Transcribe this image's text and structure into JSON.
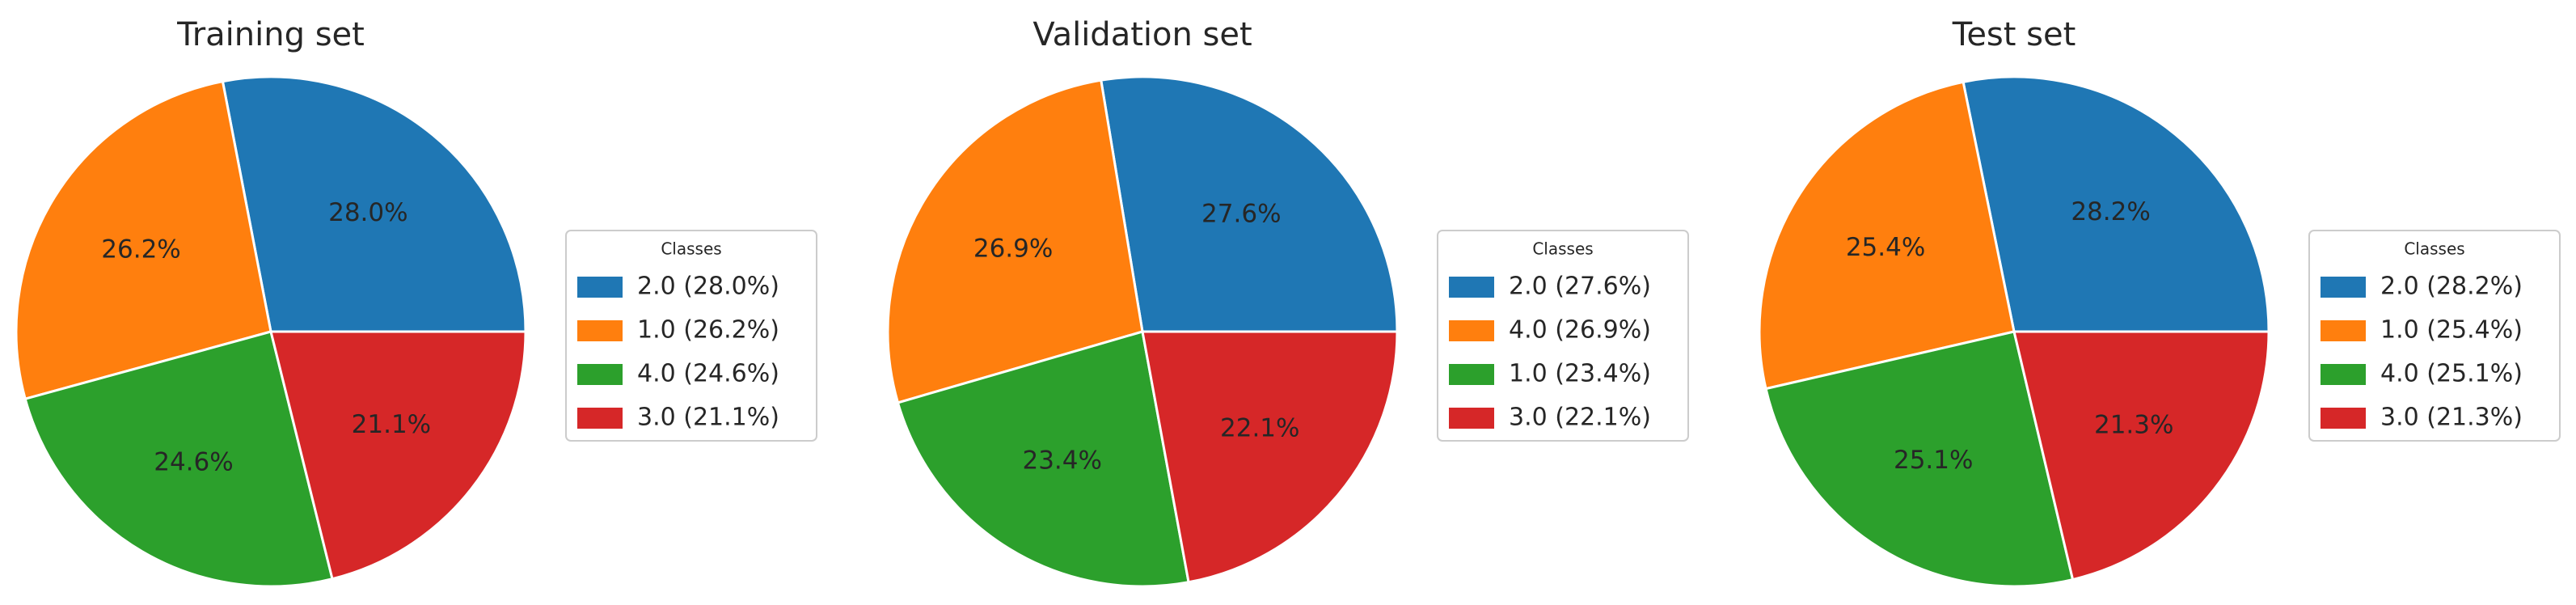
{
  "chart_data": [
    {
      "type": "pie",
      "title": "Training set",
      "legend_title": "Classes",
      "categories": [
        "2.0 (28.0%)",
        "1.0 (26.2%)",
        "4.0 (24.6%)",
        "3.0 (21.1%)"
      ],
      "values": [
        28.0,
        26.2,
        24.6,
        21.1
      ],
      "value_labels": [
        "28.0%",
        "26.2%",
        "24.6%",
        "21.1%"
      ],
      "colors": [
        "#1f77b4",
        "#ff7f0e",
        "#2ca02c",
        "#d62728"
      ]
    },
    {
      "type": "pie",
      "title": "Validation set",
      "legend_title": "Classes",
      "categories": [
        "2.0 (27.6%)",
        "4.0 (26.9%)",
        "1.0 (23.4%)",
        "3.0 (22.1%)"
      ],
      "values": [
        27.6,
        26.9,
        23.4,
        22.1
      ],
      "value_labels": [
        "27.6%",
        "26.9%",
        "23.4%",
        "22.1%"
      ],
      "colors": [
        "#1f77b4",
        "#ff7f0e",
        "#2ca02c",
        "#d62728"
      ]
    },
    {
      "type": "pie",
      "title": "Test set",
      "legend_title": "Classes",
      "categories": [
        "2.0 (28.2%)",
        "1.0 (25.4%)",
        "4.0 (25.1%)",
        "3.0 (21.3%)"
      ],
      "values": [
        28.2,
        25.4,
        25.1,
        21.3
      ],
      "value_labels": [
        "28.2%",
        "25.4%",
        "25.1%",
        "21.3%"
      ],
      "colors": [
        "#1f77b4",
        "#ff7f0e",
        "#2ca02c",
        "#d62728"
      ]
    }
  ]
}
